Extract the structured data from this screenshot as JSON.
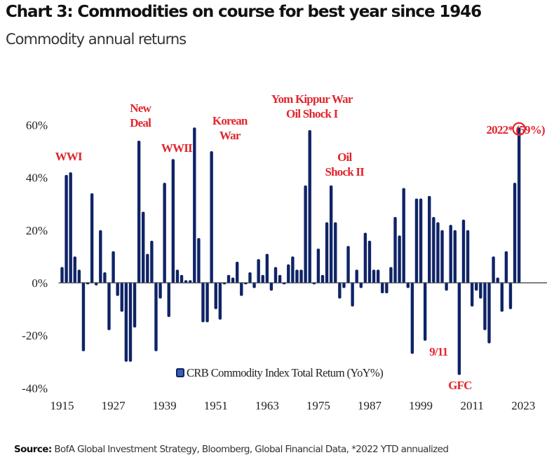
{
  "header": {
    "title": "Chart 3: Commodities on course for best year since 1946",
    "subtitle": "Commodity annual returns"
  },
  "footer": {
    "source_label": "Source:",
    "source_text": "BofA Global Investment Strategy, Bloomberg, Global Financial Data, *2022 YTD annualized"
  },
  "colors": {
    "bar": "#0f2466",
    "bar_highlight": "#3a5fb0",
    "annotation": "#e0262e",
    "axis": "#555555"
  },
  "chart_data": {
    "type": "bar",
    "title": "Chart 3: Commodities on course for best year since 1946",
    "subtitle": "Commodity annual returns",
    "xlabel": "",
    "ylabel": "",
    "ylim": [
      -40,
      60
    ],
    "grid": false,
    "legend": {
      "position": "bottom-center",
      "entries": [
        "CRB Commodity Index Total Return (YoY%)"
      ]
    },
    "y_ticks": [
      {
        "value": 60,
        "label": "60%"
      },
      {
        "value": 40,
        "label": "40%"
      },
      {
        "value": 20,
        "label": "20%"
      },
      {
        "value": 0,
        "label": "0%"
      },
      {
        "value": -20,
        "label": "-20%"
      },
      {
        "value": -40,
        "label": "-40%"
      }
    ],
    "x_ticks": [
      {
        "value": 1915,
        "label": "1915"
      },
      {
        "value": 1927,
        "label": "1927"
      },
      {
        "value": 1939,
        "label": "1939"
      },
      {
        "value": 1951,
        "label": "1951"
      },
      {
        "value": 1963,
        "label": "1963"
      },
      {
        "value": 1975,
        "label": "1975"
      },
      {
        "value": 1987,
        "label": "1987"
      },
      {
        "value": 1999,
        "label": "1999"
      },
      {
        "value": 2011,
        "label": "2011"
      },
      {
        "value": 2023,
        "label": "2023"
      }
    ],
    "start_year": 1915,
    "series": [
      {
        "name": "CRB Commodity Index Total Return (YoY%)",
        "values": [
          6,
          41,
          42,
          10,
          5,
          -26,
          0,
          34,
          -1,
          20,
          4,
          -18,
          12,
          -5,
          -11,
          -30,
          -30,
          -17,
          54,
          27,
          11,
          16,
          -26,
          -6,
          38,
          -13,
          47,
          5,
          3,
          1,
          1,
          59,
          17,
          -15,
          -15,
          50,
          -10,
          -14,
          0,
          3,
          2,
          8,
          -5,
          0,
          4,
          -2,
          9,
          3,
          11,
          -3,
          6,
          3,
          0,
          7,
          10,
          5,
          5,
          37,
          58,
          0,
          13,
          3,
          23,
          37,
          23,
          -6,
          -2,
          14,
          -9,
          5,
          -2,
          19,
          16,
          5,
          5,
          -4,
          -4,
          6,
          25,
          18,
          36,
          -2,
          -27,
          32,
          32,
          -22,
          33,
          25,
          23,
          20,
          -3,
          22,
          20,
          -35,
          24,
          20,
          -9,
          -3,
          -6,
          -18,
          -23,
          10,
          2,
          -11,
          12,
          -10,
          38,
          59
        ]
      }
    ],
    "annotations": [
      {
        "year": 1917,
        "lines": [
          "WWI"
        ]
      },
      {
        "year": 1933,
        "lines": [
          "New",
          "Deal"
        ]
      },
      {
        "year": 1941,
        "lines": [
          "WWII"
        ]
      },
      {
        "year": 1951,
        "lines": [
          "Korean",
          "War"
        ]
      },
      {
        "year": 1973,
        "lines": [
          "Yom Kippur War",
          "Oil Shock I"
        ]
      },
      {
        "year": 1979,
        "lines": [
          "Oil",
          "Shock II"
        ]
      },
      {
        "year": 2001,
        "lines": [
          "9/11"
        ]
      },
      {
        "year": 2008,
        "lines": [
          "GFC"
        ]
      },
      {
        "year": 2022,
        "lines": [
          "2022* (59%)"
        ]
      }
    ],
    "highlight": {
      "year": 2022,
      "value": 59,
      "label": "2022* (59%)"
    }
  }
}
